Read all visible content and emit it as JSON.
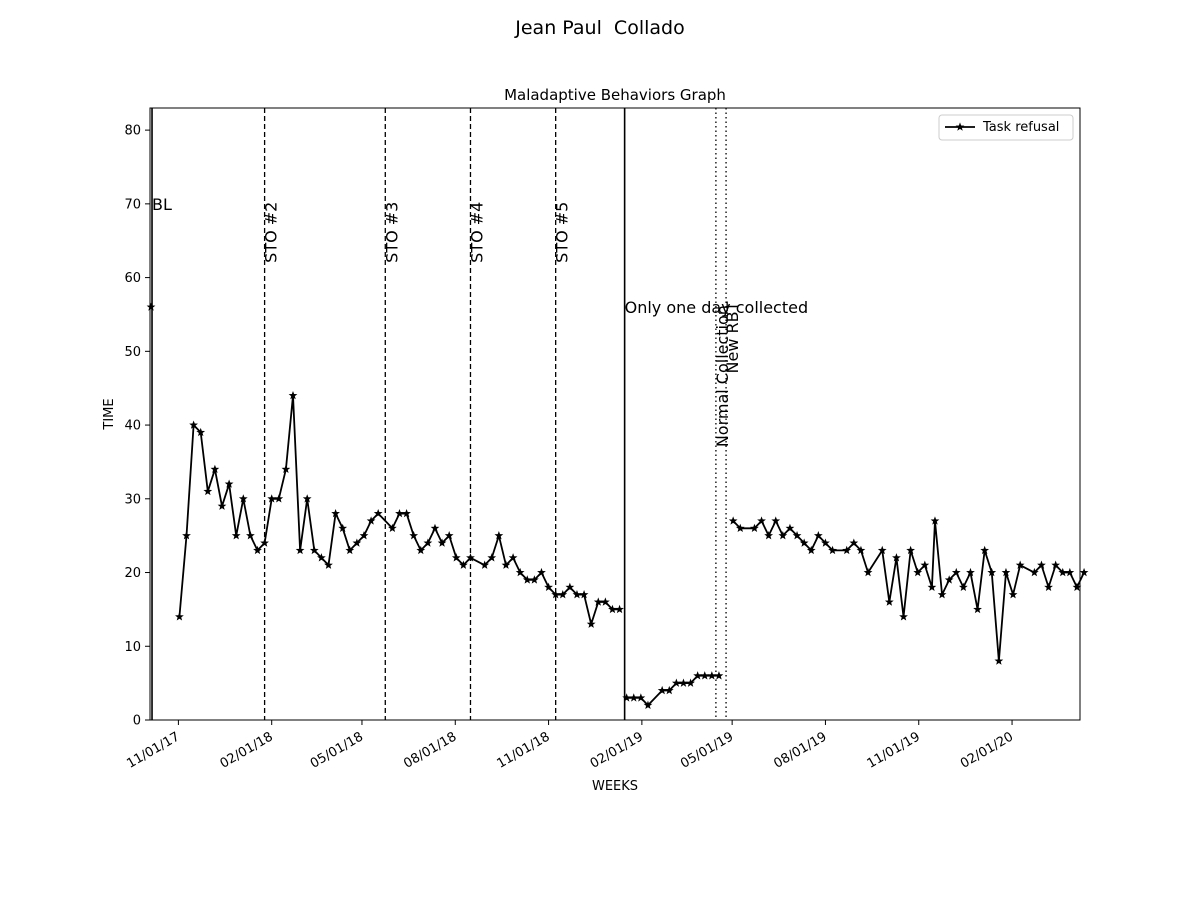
{
  "chart_data": {
    "type": "line",
    "suptitle": "Jean Paul  Collado",
    "title": "Maladaptive Behaviors Graph",
    "xlabel": "WEEKS",
    "ylabel": "TIME",
    "ylim": [
      0,
      83
    ],
    "xlim": [
      "2017-10-04",
      "2020-04-08"
    ],
    "yticks": [
      0,
      10,
      20,
      30,
      40,
      50,
      60,
      70,
      80
    ],
    "xticks": [
      {
        "date": "2017-11-01",
        "label": "11/01/17"
      },
      {
        "date": "2018-02-01",
        "label": "02/01/18"
      },
      {
        "date": "2018-05-01",
        "label": "05/01/18"
      },
      {
        "date": "2018-08-01",
        "label": "08/01/18"
      },
      {
        "date": "2018-11-01",
        "label": "11/01/18"
      },
      {
        "date": "2019-02-01",
        "label": "02/01/19"
      },
      {
        "date": "2019-05-01",
        "label": "05/01/19"
      },
      {
        "date": "2019-08-01",
        "label": "08/01/19"
      },
      {
        "date": "2019-11-01",
        "label": "11/01/19"
      },
      {
        "date": "2020-02-01",
        "label": "02/01/20"
      }
    ],
    "legend": {
      "position": "top-right",
      "entries": [
        "Task refusal"
      ]
    },
    "grid": false,
    "series": [
      {
        "name": "Task refusal",
        "color": "#000000",
        "marker": "star",
        "segments": [
          [
            [
              "2017-10-05",
              56
            ]
          ],
          [
            [
              "2017-11-02",
              14
            ],
            [
              "2017-11-09",
              25
            ],
            [
              "2017-11-16",
              40
            ],
            [
              "2017-11-23",
              39
            ],
            [
              "2017-11-30",
              31
            ],
            [
              "2017-12-07",
              34
            ],
            [
              "2017-12-14",
              29
            ],
            [
              "2017-12-21",
              32
            ],
            [
              "2017-12-28",
              25
            ],
            [
              "2018-01-04",
              30
            ],
            [
              "2018-01-11",
              25
            ],
            [
              "2018-01-18",
              23
            ],
            [
              "2018-01-25",
              24
            ],
            [
              "2018-02-01",
              30
            ],
            [
              "2018-02-08",
              30
            ],
            [
              "2018-02-15",
              34
            ],
            [
              "2018-02-22",
              44
            ],
            [
              "2018-03-01",
              23
            ],
            [
              "2018-03-08",
              30
            ],
            [
              "2018-03-15",
              23
            ],
            [
              "2018-03-22",
              22
            ],
            [
              "2018-03-29",
              21
            ],
            [
              "2018-04-05",
              28
            ],
            [
              "2018-04-12",
              26
            ],
            [
              "2018-04-19",
              23
            ],
            [
              "2018-04-26",
              24
            ],
            [
              "2018-05-03",
              25
            ],
            [
              "2018-05-10",
              27
            ],
            [
              "2018-05-17",
              28
            ],
            [
              "2018-05-31",
              26
            ],
            [
              "2018-06-07",
              28
            ],
            [
              "2018-06-14",
              28
            ],
            [
              "2018-06-21",
              25
            ],
            [
              "2018-06-28",
              23
            ],
            [
              "2018-07-05",
              24
            ],
            [
              "2018-07-12",
              26
            ],
            [
              "2018-07-19",
              24
            ],
            [
              "2018-07-26",
              25
            ],
            [
              "2018-08-02",
              22
            ],
            [
              "2018-08-09",
              21
            ],
            [
              "2018-08-16",
              22
            ],
            [
              "2018-08-30",
              21
            ],
            [
              "2018-09-06",
              22
            ],
            [
              "2018-09-13",
              25
            ],
            [
              "2018-09-20",
              21
            ],
            [
              "2018-09-27",
              22
            ],
            [
              "2018-10-04",
              20
            ],
            [
              "2018-10-11",
              19
            ],
            [
              "2018-10-18",
              19
            ],
            [
              "2018-10-25",
              20
            ],
            [
              "2018-11-01",
              18
            ],
            [
              "2018-11-08",
              17
            ],
            [
              "2018-11-15",
              17
            ],
            [
              "2018-11-22",
              18
            ],
            [
              "2018-11-29",
              17
            ],
            [
              "2018-12-06",
              17
            ],
            [
              "2018-12-13",
              13
            ],
            [
              "2018-12-20",
              16
            ],
            [
              "2018-12-27",
              16
            ],
            [
              "2019-01-03",
              15
            ],
            [
              "2019-01-10",
              15
            ]
          ],
          [
            [
              "2019-01-17",
              3
            ],
            [
              "2019-01-24",
              3
            ],
            [
              "2019-01-31",
              3
            ],
            [
              "2019-02-07",
              2
            ],
            [
              "2019-02-21",
              4
            ],
            [
              "2019-02-28",
              4
            ],
            [
              "2019-03-07",
              5
            ],
            [
              "2019-03-14",
              5
            ],
            [
              "2019-03-21",
              5
            ],
            [
              "2019-03-28",
              6
            ],
            [
              "2019-04-04",
              6
            ],
            [
              "2019-04-11",
              6
            ],
            [
              "2019-04-18",
              6
            ]
          ],
          [
            [
              "2019-05-02",
              27
            ],
            [
              "2019-05-09",
              26
            ],
            [
              "2019-05-23",
              26
            ],
            [
              "2019-05-30",
              27
            ],
            [
              "2019-06-06",
              25
            ],
            [
              "2019-06-13",
              27
            ],
            [
              "2019-06-20",
              25
            ],
            [
              "2019-06-27",
              26
            ],
            [
              "2019-07-04",
              25
            ],
            [
              "2019-07-11",
              24
            ],
            [
              "2019-07-18",
              23
            ],
            [
              "2019-07-25",
              25
            ],
            [
              "2019-08-01",
              24
            ],
            [
              "2019-08-08",
              23
            ],
            [
              "2019-08-22",
              23
            ],
            [
              "2019-08-29",
              24
            ],
            [
              "2019-09-05",
              23
            ],
            [
              "2019-09-12",
              20
            ],
            [
              "2019-09-26",
              23
            ],
            [
              "2019-10-03",
              16
            ],
            [
              "2019-10-10",
              22
            ],
            [
              "2019-10-17",
              14
            ],
            [
              "2019-10-24",
              23
            ],
            [
              "2019-10-31",
              20
            ],
            [
              "2019-11-07",
              21
            ],
            [
              "2019-11-14",
              18
            ],
            [
              "2019-11-17",
              27
            ],
            [
              "2019-11-24",
              17
            ],
            [
              "2019-12-01",
              19
            ],
            [
              "2019-12-08",
              20
            ],
            [
              "2019-12-15",
              18
            ],
            [
              "2019-12-22",
              20
            ],
            [
              "2019-12-29",
              15
            ],
            [
              "2020-01-05",
              23
            ],
            [
              "2020-01-12",
              20
            ],
            [
              "2020-01-19",
              8
            ],
            [
              "2020-01-26",
              20
            ],
            [
              "2020-02-02",
              17
            ],
            [
              "2020-02-09",
              21
            ],
            [
              "2020-02-23",
              20
            ],
            [
              "2020-03-01",
              21
            ],
            [
              "2020-03-08",
              18
            ],
            [
              "2020-03-15",
              21
            ],
            [
              "2020-03-22",
              20
            ],
            [
              "2020-03-29",
              20
            ],
            [
              "2020-04-05",
              18
            ],
            [
              "2020-04-12",
              20
            ]
          ]
        ]
      }
    ],
    "phase_lines": [
      {
        "date": "2017-10-06",
        "style": "solid",
        "label": "BL",
        "label_rotation": "horizontal",
        "label_y": 70
      },
      {
        "date": "2018-01-25",
        "style": "dashed",
        "label": "STO #2",
        "label_rotation": "vertical",
        "label_y": 62
      },
      {
        "date": "2018-05-24",
        "style": "dashed",
        "label": "STO #3",
        "label_rotation": "vertical",
        "label_y": 62
      },
      {
        "date": "2018-08-16",
        "style": "dashed",
        "label": "STO #4",
        "label_rotation": "vertical",
        "label_y": 62
      },
      {
        "date": "2018-11-08",
        "style": "dashed",
        "label": "STO #5",
        "label_rotation": "vertical",
        "label_y": 62
      },
      {
        "date": "2019-01-15",
        "style": "solid",
        "label": "Only one day collected",
        "label_rotation": "horizontal",
        "label_y": 56
      },
      {
        "date": "2019-04-15",
        "style": "dotted",
        "label": "Normal Collection",
        "label_rotation": "vertical",
        "label_y": 37
      },
      {
        "date": "2019-04-25",
        "style": "dotted",
        "label": "New RBT",
        "label_rotation": "vertical",
        "label_y": 47
      }
    ]
  }
}
